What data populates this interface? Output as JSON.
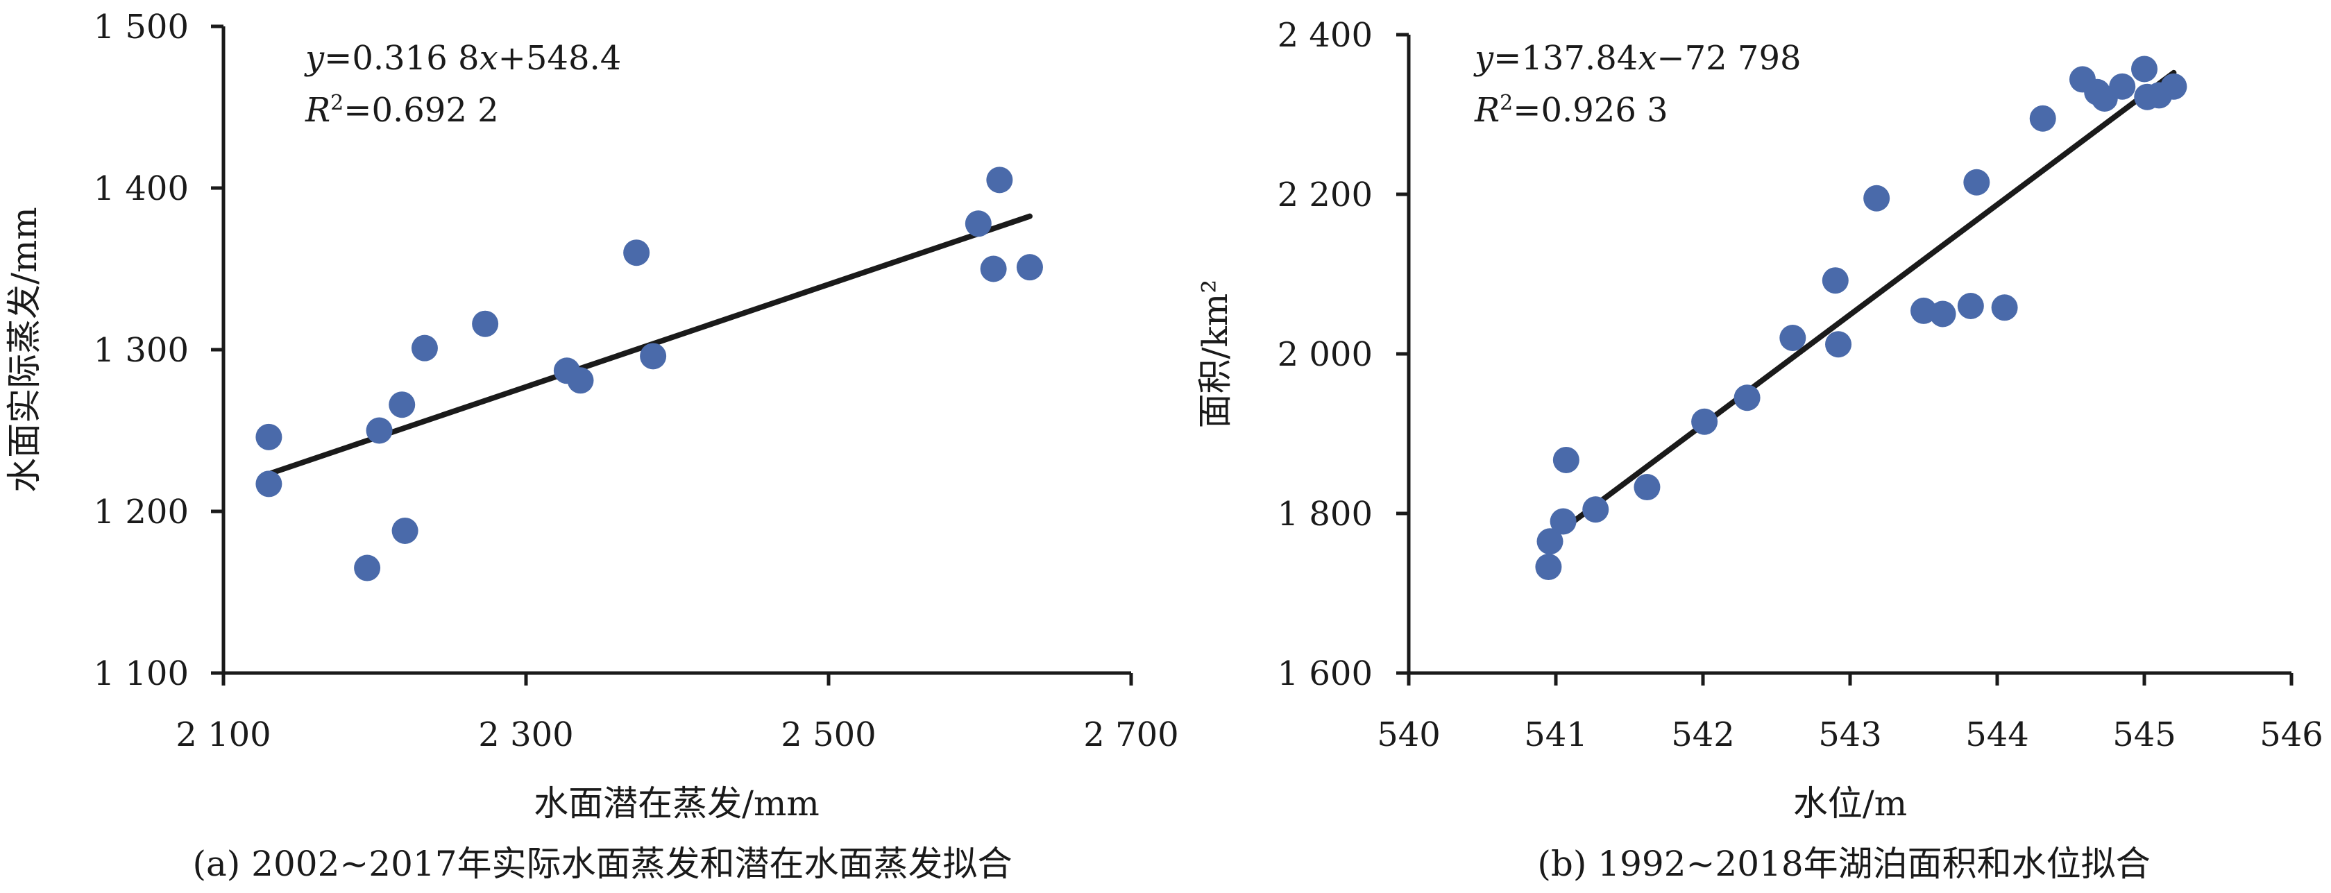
{
  "chart_data": [
    {
      "type": "scatter",
      "caption": "(a) 2002~2017年实际水面蒸发和潜在水面蒸发拟合",
      "xlabel": "水面潜在蒸发/mm",
      "ylabel": "水面实际蒸发/mm",
      "xlim": [
        2100,
        2700
      ],
      "ylim": [
        1100,
        1500
      ],
      "xticks": [
        2100,
        2300,
        2500,
        2700
      ],
      "yticks": [
        1100,
        1200,
        1300,
        1400,
        1500
      ],
      "xtick_labels": [
        "2 100",
        "2 300",
        "2 500",
        "2 700"
      ],
      "ytick_labels": [
        "1 100",
        "1 200",
        "1 300",
        "1 400",
        "1 500"
      ],
      "equation_lines": [
        {
          "parts": [
            {
              "t": "y",
              "i": true
            },
            {
              "t": "=0.316 8",
              "i": false
            },
            {
              "t": "x",
              "i": true
            },
            {
              "t": "+548.4",
              "i": false
            }
          ]
        },
        {
          "parts": [
            {
              "t": "R",
              "i": true
            },
            {
              "t": "2",
              "i": false,
              "sup": true
            },
            {
              "t": "=0.692 2",
              "i": false
            }
          ]
        }
      ],
      "point_color": "#4a6aaa",
      "line_color": "#1a1a1a",
      "points": [
        {
          "x": 2130,
          "y": 1246
        },
        {
          "x": 2130,
          "y": 1217
        },
        {
          "x": 2195,
          "y": 1165
        },
        {
          "x": 2203,
          "y": 1250
        },
        {
          "x": 2218,
          "y": 1266
        },
        {
          "x": 2220,
          "y": 1188
        },
        {
          "x": 2233,
          "y": 1301
        },
        {
          "x": 2273,
          "y": 1316
        },
        {
          "x": 2327,
          "y": 1287
        },
        {
          "x": 2336,
          "y": 1281
        },
        {
          "x": 2373,
          "y": 1360
        },
        {
          "x": 2384,
          "y": 1296
        },
        {
          "x": 2599,
          "y": 1378
        },
        {
          "x": 2609,
          "y": 1350
        },
        {
          "x": 2613,
          "y": 1405
        },
        {
          "x": 2633,
          "y": 1351
        }
      ],
      "fit": {
        "slope": 0.3168,
        "intercept": 548.4,
        "x_start": 2130,
        "x_end": 2633
      }
    },
    {
      "type": "scatter",
      "caption": "(b) 1992~2018年湖泊面积和水位拟合",
      "xlabel": "水位/m",
      "ylabel": "面积/km²",
      "xlim": [
        540,
        546
      ],
      "ylim": [
        1600,
        2400
      ],
      "xticks": [
        540,
        541,
        542,
        543,
        544,
        545,
        546
      ],
      "yticks": [
        1600,
        1800,
        2000,
        2200,
        2400
      ],
      "xtick_labels": [
        "540",
        "541",
        "542",
        "543",
        "544",
        "545",
        "546"
      ],
      "ytick_labels": [
        "1 600",
        "1 800",
        "2 000",
        "2 200",
        "2 400"
      ],
      "equation_lines": [
        {
          "parts": [
            {
              "t": "y",
              "i": true
            },
            {
              "t": "=137.84",
              "i": false
            },
            {
              "t": "x",
              "i": true
            },
            {
              "t": "−72 798",
              "i": false
            }
          ]
        },
        {
          "parts": [
            {
              "t": "R",
              "i": true
            },
            {
              "t": "2",
              "i": false,
              "sup": true
            },
            {
              "t": "=0.926 3",
              "i": false
            }
          ]
        }
      ],
      "point_color": "#4a6aaa",
      "line_color": "#1a1a1a",
      "points": [
        {
          "x": 540.95,
          "y": 1733
        },
        {
          "x": 540.96,
          "y": 1765
        },
        {
          "x": 541.05,
          "y": 1790
        },
        {
          "x": 541.07,
          "y": 1867
        },
        {
          "x": 541.27,
          "y": 1805
        },
        {
          "x": 541.62,
          "y": 1833
        },
        {
          "x": 542.01,
          "y": 1915
        },
        {
          "x": 542.3,
          "y": 1945
        },
        {
          "x": 542.61,
          "y": 2020
        },
        {
          "x": 542.9,
          "y": 2092
        },
        {
          "x": 542.92,
          "y": 2012
        },
        {
          "x": 543.18,
          "y": 2195
        },
        {
          "x": 543.5,
          "y": 2054
        },
        {
          "x": 543.63,
          "y": 2050
        },
        {
          "x": 543.82,
          "y": 2060
        },
        {
          "x": 543.86,
          "y": 2215
        },
        {
          "x": 544.05,
          "y": 2058
        },
        {
          "x": 544.31,
          "y": 2295
        },
        {
          "x": 544.58,
          "y": 2344
        },
        {
          "x": 544.68,
          "y": 2328
        },
        {
          "x": 544.73,
          "y": 2320
        },
        {
          "x": 544.85,
          "y": 2335
        },
        {
          "x": 545.0,
          "y": 2357
        },
        {
          "x": 545.02,
          "y": 2322
        },
        {
          "x": 545.1,
          "y": 2324
        },
        {
          "x": 545.2,
          "y": 2335
        }
      ],
      "fit": {
        "slope": 137.84,
        "intercept": -72798,
        "x_start": 540.95,
        "x_end": 545.2
      }
    }
  ]
}
